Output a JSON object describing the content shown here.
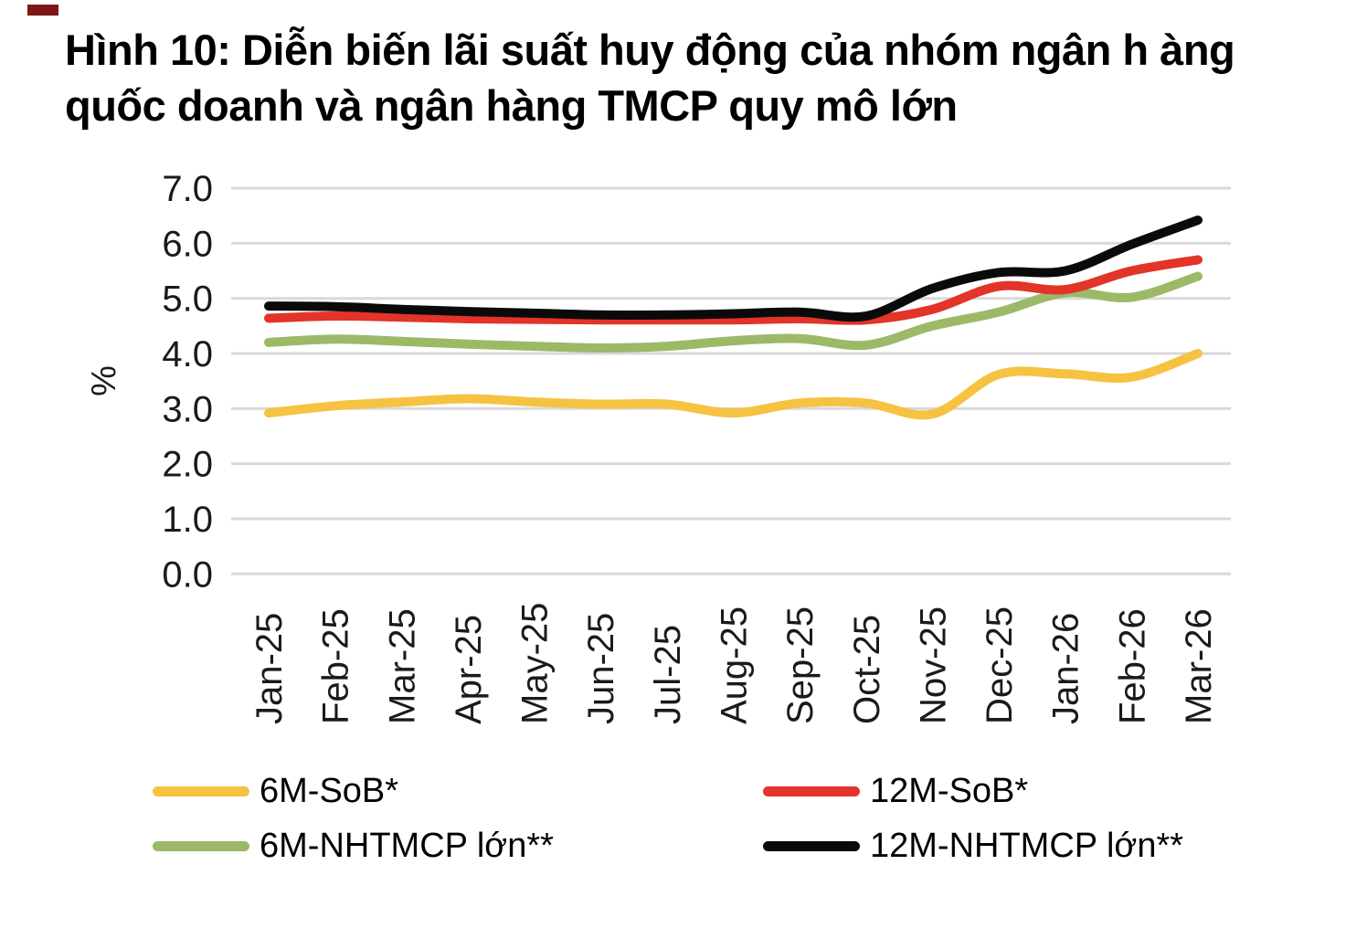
{
  "corner_mark_color": "#7E1715",
  "title": {
    "line1": "Hình 10: Diễn biến lãi suất huy động của nhóm ngân h àng",
    "line2": "quốc doanh và ngân hàng TMCP quy mô lớn"
  },
  "chart_data": {
    "type": "line",
    "title": "Hình 10: Diễn biến lãi suất huy động của nhóm ngân h àng quốc doanh và ngân hàng TMCP quy mô lớn",
    "xlabel": "",
    "ylabel": "%",
    "ylim": [
      0,
      7
    ],
    "yticks": [
      0,
      1,
      2,
      3,
      4,
      5,
      6,
      7
    ],
    "ytick_labels": [
      "0.0",
      "1.0",
      "2.0",
      "3.0",
      "4.0",
      "5.0",
      "6.0",
      "7.0"
    ],
    "grid": "horizontal-only",
    "gridline_color": "#D9D9D9",
    "legend_position": "bottom",
    "categories": [
      "Jan-25",
      "Feb-25",
      "Mar-25",
      "Apr-25",
      "May-25",
      "Jun-25",
      "Jul-25",
      "Aug-25",
      "Sep-25",
      "Oct-25",
      "Nov-25",
      "Dec-25",
      "Jan-26",
      "Feb-26",
      "Mar-26"
    ],
    "series": [
      {
        "name": "6M-SoB*",
        "color": "#F5C242",
        "values": [
          2.92,
          3.05,
          3.12,
          3.18,
          3.12,
          3.08,
          3.08,
          2.92,
          3.1,
          3.1,
          2.9,
          3.62,
          3.63,
          3.57,
          4.0
        ]
      },
      {
        "name": "12M-SoB*",
        "color": "#E23428",
        "values": [
          4.64,
          4.68,
          4.66,
          4.63,
          4.62,
          4.61,
          4.61,
          4.61,
          4.63,
          4.61,
          4.8,
          5.22,
          5.16,
          5.5,
          5.7
        ]
      },
      {
        "name": "6M-NHTMCP lớn**",
        "color": "#9CB968",
        "values": [
          4.2,
          4.26,
          4.22,
          4.17,
          4.13,
          4.1,
          4.13,
          4.23,
          4.27,
          4.15,
          4.5,
          4.75,
          5.1,
          5.02,
          5.4
        ]
      },
      {
        "name": "12M-NHTMCP lớn**",
        "color": "#0A0A0A",
        "values": [
          4.86,
          4.85,
          4.8,
          4.76,
          4.73,
          4.7,
          4.7,
          4.72,
          4.75,
          4.68,
          5.18,
          5.47,
          5.5,
          5.98,
          6.42
        ]
      }
    ]
  },
  "axis_text_color": "#1A1A1A"
}
